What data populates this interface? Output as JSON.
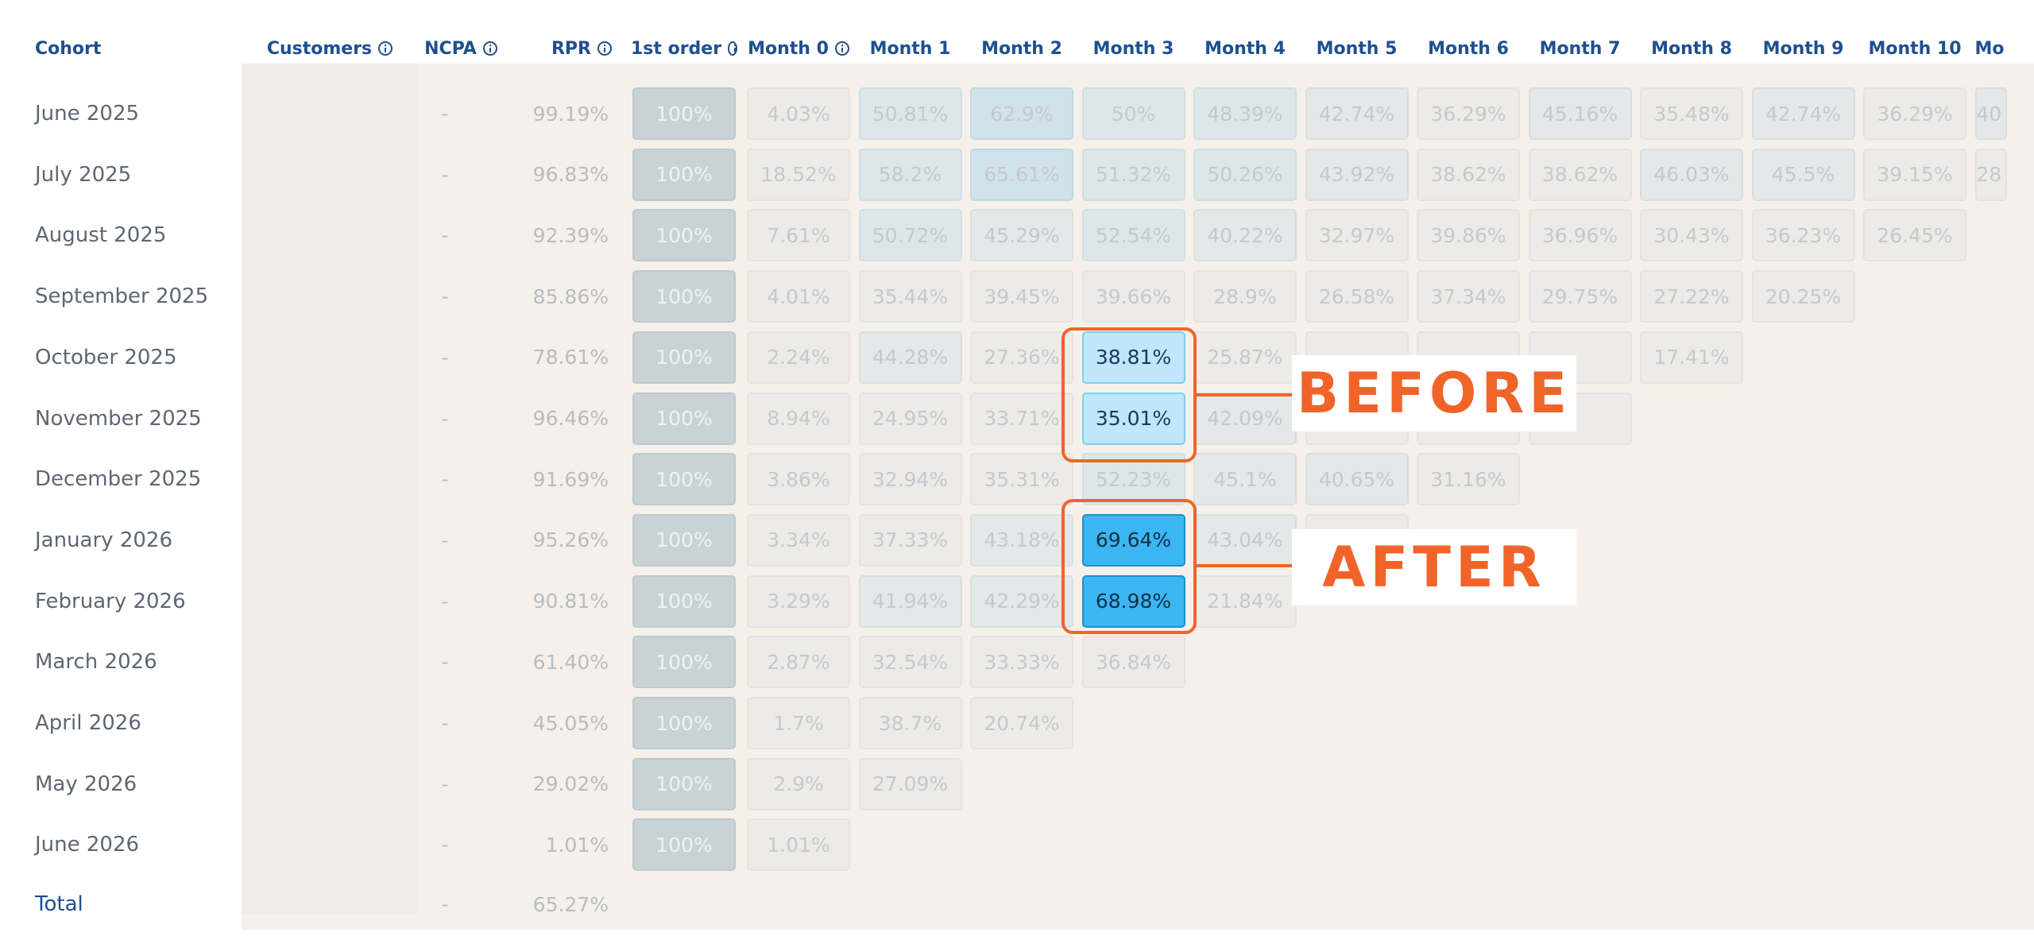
{
  "columns": {
    "cohort": "Cohort",
    "customers": "Customers",
    "ncpa": "NCPA",
    "rpr": "RPR",
    "first_order": "1st order",
    "months": [
      "Month 0",
      "Month 1",
      "Month 2",
      "Month 3",
      "Month 4",
      "Month 5",
      "Month 6",
      "Month 7",
      "Month 8",
      "Month 9",
      "Month 10",
      "Mo"
    ]
  },
  "info_icons": [
    "customers-info-icon",
    "ncpa-info-icon",
    "rpr-info-icon",
    "first-order-info-icon",
    "month0-info-icon"
  ],
  "rows": [
    {
      "cohort": "June 2025",
      "ncpa": "-",
      "rpr": "99.19%",
      "first": "100%",
      "months": [
        "4.03%",
        "50.81%",
        "62.9%",
        "50%",
        "48.39%",
        "42.74%",
        "36.29%",
        "45.16%",
        "35.48%",
        "42.74%",
        "36.29%",
        "40"
      ]
    },
    {
      "cohort": "July 2025",
      "ncpa": "-",
      "rpr": "96.83%",
      "first": "100%",
      "months": [
        "18.52%",
        "58.2%",
        "65.61%",
        "51.32%",
        "50.26%",
        "43.92%",
        "38.62%",
        "38.62%",
        "46.03%",
        "45.5%",
        "39.15%",
        "28"
      ]
    },
    {
      "cohort": "August 2025",
      "ncpa": "-",
      "rpr": "92.39%",
      "first": "100%",
      "months": [
        "7.61%",
        "50.72%",
        "45.29%",
        "52.54%",
        "40.22%",
        "32.97%",
        "39.86%",
        "36.96%",
        "30.43%",
        "36.23%",
        "26.45%"
      ]
    },
    {
      "cohort": "September 2025",
      "ncpa": "-",
      "rpr": "85.86%",
      "first": "100%",
      "months": [
        "4.01%",
        "35.44%",
        "39.45%",
        "39.66%",
        "28.9%",
        "26.58%",
        "37.34%",
        "29.75%",
        "27.22%",
        "20.25%"
      ]
    },
    {
      "cohort": "October 2025",
      "ncpa": "-",
      "rpr": "78.61%",
      "first": "100%",
      "months": [
        "2.24%",
        "44.28%",
        "27.36%",
        "38.81%",
        "25.87%",
        "",
        "",
        "",
        "17.41%"
      ]
    },
    {
      "cohort": "November 2025",
      "ncpa": "-",
      "rpr": "96.46%",
      "first": "100%",
      "months": [
        "8.94%",
        "24.95%",
        "33.71%",
        "35.01%",
        "42.09%",
        "",
        "",
        ""
      ]
    },
    {
      "cohort": "December 2025",
      "ncpa": "-",
      "rpr": "91.69%",
      "first": "100%",
      "months": [
        "3.86%",
        "32.94%",
        "35.31%",
        "52.23%",
        "45.1%",
        "40.65%",
        "31.16%"
      ]
    },
    {
      "cohort": "January 2026",
      "ncpa": "-",
      "rpr": "95.26%",
      "first": "100%",
      "months": [
        "3.34%",
        "37.33%",
        "43.18%",
        "69.64%",
        "43.04%",
        ""
      ]
    },
    {
      "cohort": "February 2026",
      "ncpa": "-",
      "rpr": "90.81%",
      "first": "100%",
      "months": [
        "3.29%",
        "41.94%",
        "42.29%",
        "68.98%",
        "21.84%"
      ]
    },
    {
      "cohort": "March 2026",
      "ncpa": "-",
      "rpr": "61.40%",
      "first": "100%",
      "months": [
        "2.87%",
        "32.54%",
        "33.33%",
        "36.84%"
      ]
    },
    {
      "cohort": "April 2026",
      "ncpa": "-",
      "rpr": "45.05%",
      "first": "100%",
      "months": [
        "1.7%",
        "38.7%",
        "20.74%"
      ]
    },
    {
      "cohort": "May 2026",
      "ncpa": "-",
      "rpr": "29.02%",
      "first": "100%",
      "months": [
        "2.9%",
        "27.09%"
      ]
    },
    {
      "cohort": "June 2026",
      "ncpa": "-",
      "rpr": "1.01%",
      "first": "100%",
      "months": [
        "1.01%"
      ]
    }
  ],
  "total": {
    "cohort": "Total",
    "ncpa": "-",
    "rpr": "65.27%"
  },
  "annotations": {
    "before_label": "BEFORE",
    "after_label": "AFTER"
  },
  "colors": {
    "header_text": "#1f4f8f",
    "annotation": "#f0642a",
    "highlight_before": "#bfe6fb",
    "highlight_after": "#3bb6f2"
  }
}
